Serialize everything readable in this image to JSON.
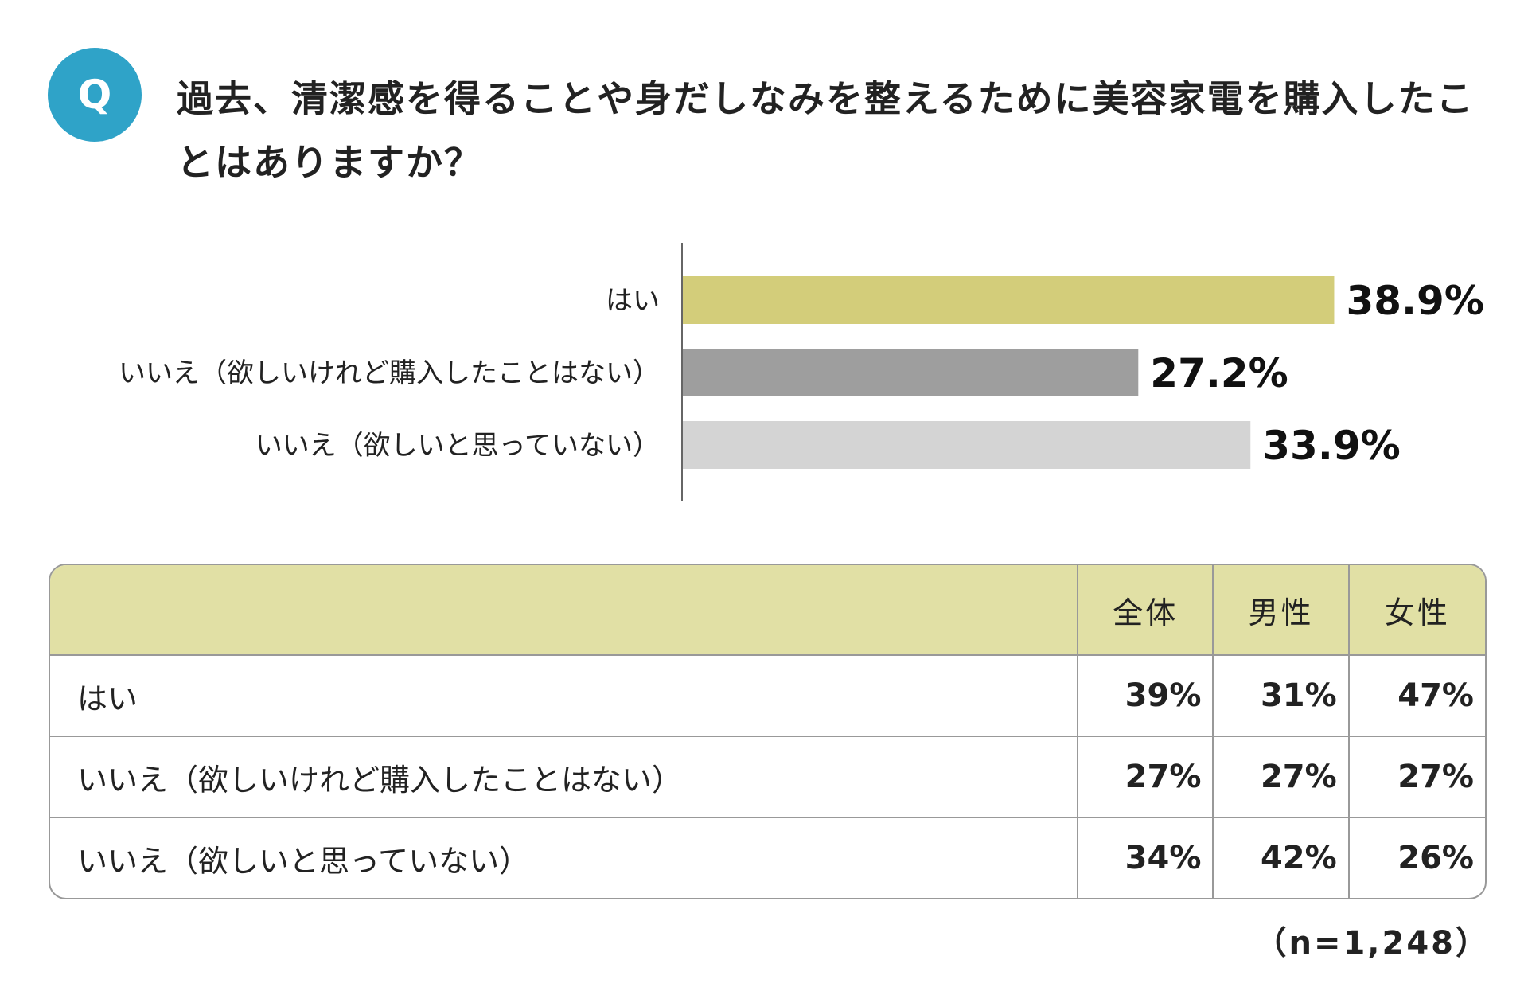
{
  "question": {
    "badge": "Q",
    "text": "過去、清潔感を得ることや身だしなみを整えるために美容家電を購入したことはありますか？"
  },
  "chart_data": {
    "type": "bar",
    "orientation": "horizontal",
    "categories": [
      "はい",
      "いいえ（欲しいけれど購入したことはない）",
      "いいえ（欲しいと思っていない）"
    ],
    "values": [
      38.9,
      27.2,
      33.9
    ],
    "value_labels": [
      "38.9%",
      "27.2%",
      "33.9%"
    ],
    "colors": [
      "#d3cd7a",
      "#9e9e9e",
      "#d4d4d4"
    ],
    "xlim": [
      0,
      50
    ],
    "grid": false,
    "legend": "none"
  },
  "table": {
    "headers": [
      "",
      "全体",
      "男性",
      "女性"
    ],
    "rows": [
      {
        "label": "はい",
        "values": [
          "39%",
          "31%",
          "47%"
        ]
      },
      {
        "label": "いいえ（欲しいけれど購入したことはない）",
        "values": [
          "27%",
          "27%",
          "27%"
        ]
      },
      {
        "label": "いいえ（欲しいと思っていない）",
        "values": [
          "34%",
          "42%",
          "26%"
        ]
      }
    ]
  },
  "sample_size": "（n=1,248）"
}
